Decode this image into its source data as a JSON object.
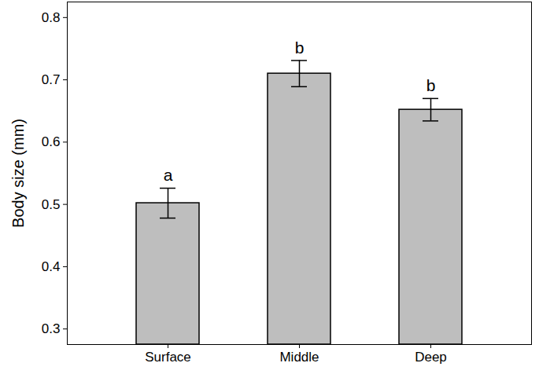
{
  "chart_data": {
    "type": "bar",
    "y_label": "Body size (mm)",
    "categories": [
      "Surface",
      "Middle",
      "Deep"
    ],
    "values": [
      0.502,
      0.71,
      0.652
    ],
    "errors": [
      0.024,
      0.021,
      0.018
    ],
    "annotations": [
      "a",
      "b",
      "b"
    ],
    "color": "#bebebe",
    "ylim": [
      0.275,
      0.825
    ],
    "yticks": [
      0.3,
      0.4,
      0.5,
      0.6,
      0.7,
      0.8
    ],
    "grid": false
  }
}
